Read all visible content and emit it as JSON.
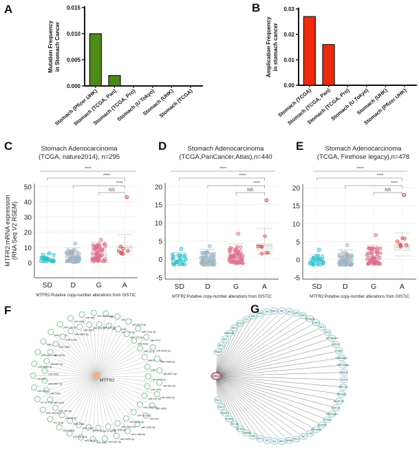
{
  "panel_labels": [
    "A",
    "B",
    "C",
    "D",
    "E",
    "F",
    "G"
  ],
  "chart_data": [
    {
      "id": "A",
      "type": "bar",
      "title": "",
      "ylabel": "Mutation  Frequency\nin Stomach Cancer",
      "xlabel": "",
      "categories": [
        "Stomach (Pfizer UHK)",
        "Stomach (TCGA, Pan)",
        "Stomach (TCGA, Pro)",
        "Stomach (U Tokyo)",
        "Stomach (UHK)",
        "Stomach (TCGA)"
      ],
      "values": [
        0.01,
        0.002,
        0,
        0,
        0,
        0
      ],
      "ylim": [
        0,
        0.015
      ],
      "yticks": [
        "0.000",
        "0.005",
        "0.010",
        "0.015"
      ],
      "color": "#4e8a16"
    },
    {
      "id": "B",
      "type": "bar",
      "title": "",
      "ylabel": "Amplication  Frequency\nin stomach cancer",
      "xlabel": "",
      "categories": [
        "Stomach (TCGA)",
        "Stomach (TCGA, Pan)",
        "Stomach (TCGA, Pro)",
        "Stomach (U Tokyo)",
        "Stomach (UHK)",
        "Stomach (Pfizer UHK)"
      ],
      "values": [
        0.027,
        0.016,
        0,
        0,
        0,
        0
      ],
      "ylim": [
        0,
        0.03
      ],
      "yticks": [
        "0.00",
        "0.01",
        "0.02",
        "0.03"
      ],
      "color": "#f02a0c"
    },
    {
      "id": "C",
      "type": "scatter",
      "title": "Stomach Adenocarcinoma\n(TCGA, nature2014), n=295",
      "ylabel": "MTFR2:mRNA expression\n(RNA Seq V2 RSEM)",
      "xlabel": "MTFR2:Putative copy-number alterations from GISTIC",
      "categories": [
        "SD",
        "D",
        "G",
        "A"
      ],
      "ylim": [
        -10,
        52
      ],
      "yticks": [
        "0",
        "10",
        "20",
        "30",
        "40",
        "50"
      ],
      "groups": [
        {
          "name": "SD",
          "median": 2.5,
          "q1": 1,
          "q3": 4,
          "whisker_low": 0.5,
          "whisker_high": 6,
          "max_point": 6,
          "color": "#27c4cf"
        },
        {
          "name": "D",
          "median": 3.5,
          "q1": 2,
          "q3": 6,
          "whisker_low": 0.3,
          "whisker_high": 9.5,
          "max_point": 12.5,
          "color": "#9fb4c0"
        },
        {
          "name": "G",
          "median": 5,
          "q1": 3,
          "q3": 9,
          "whisker_low": 0.8,
          "whisker_high": 13.5,
          "max_point": 15,
          "color": "#e06e8c"
        },
        {
          "name": "A",
          "median": 10,
          "q1": 7,
          "q3": 11,
          "whisker_low": 5.5,
          "whisker_high": 18.5,
          "max_point": 43,
          "color": "#d9434a"
        }
      ],
      "significance": [
        {
          "pair": [
            "SD",
            "A"
          ],
          "label": "****",
          "spanAll": true
        },
        {
          "pair": [
            "SD",
            "A"
          ],
          "label": "****"
        },
        {
          "pair": [
            "D",
            "A"
          ],
          "label": "****"
        },
        {
          "pair": [
            "G",
            "A"
          ],
          "label": "NS"
        }
      ]
    },
    {
      "id": "D",
      "type": "scatter",
      "title": "Stomach Adenocarcinoma\n(TCGA,PanCancer,Atlas),n=440",
      "ylabel": "",
      "xlabel": "MTFR2:Putative copy-number alterations from GISTIC",
      "categories": [
        "SD",
        "D",
        "G",
        "A"
      ],
      "ylim": [
        -5.5,
        21
      ],
      "yticks": [
        "-5",
        "0",
        "5",
        "10",
        "15",
        "20"
      ],
      "groups": [
        {
          "name": "SD",
          "median": -0.3,
          "q1": -0.8,
          "q3": 0.5,
          "whisker_low": -1.6,
          "whisker_high": 1.8,
          "max_point": 2.8,
          "color": "#27c4cf"
        },
        {
          "name": "D",
          "median": -0.3,
          "q1": -0.9,
          "q3": 0.8,
          "whisker_low": -1.6,
          "whisker_high": 2.7,
          "max_point": 3.6,
          "color": "#9fb4c0"
        },
        {
          "name": "G",
          "median": 0.8,
          "q1": 0.2,
          "q3": 1.8,
          "whisker_low": -1.3,
          "whisker_high": 4.2,
          "max_point": 7,
          "color": "#e06e8c"
        },
        {
          "name": "A",
          "median": 3.8,
          "q1": 2.5,
          "q3": 4.3,
          "whisker_low": 1.4,
          "whisker_high": 8.5,
          "max_point": 16.2,
          "color": "#d9434a"
        }
      ],
      "significance": [
        {
          "pair": [
            "SD",
            "A"
          ],
          "label": "****",
          "spanAll": true
        },
        {
          "pair": [
            "SD",
            "A"
          ],
          "label": "****"
        },
        {
          "pair": [
            "D",
            "A"
          ],
          "label": "****"
        },
        {
          "pair": [
            "G",
            "A"
          ],
          "label": "NS"
        }
      ]
    },
    {
      "id": "E",
      "type": "scatter",
      "title": "Stomach Adenocarcinoma\n(TCGA, Firehose legacy),n=478",
      "ylabel": "",
      "xlabel": "MTFR2:Putative copy-number alterations from GISTIC",
      "categories": [
        "SD",
        "D",
        "G",
        "A"
      ],
      "ylim": [
        -5.5,
        21
      ],
      "yticks": [
        "-5",
        "0",
        "5",
        "10",
        "15",
        "20"
      ],
      "groups": [
        {
          "name": "SD",
          "median": -0.3,
          "q1": -0.8,
          "q3": 0.5,
          "whisker_low": -1.6,
          "whisker_high": 1.3,
          "max_point": 2.7,
          "color": "#27c4cf"
        },
        {
          "name": "D",
          "median": -0.2,
          "q1": -0.8,
          "q3": 0.8,
          "whisker_low": -1.6,
          "whisker_high": 2.7,
          "max_point": 4,
          "color": "#9fb4c0"
        },
        {
          "name": "G",
          "median": 0.8,
          "q1": 0.2,
          "q3": 1.8,
          "whisker_low": -1.3,
          "whisker_high": 4,
          "max_point": 6.8,
          "color": "#e06e8c"
        },
        {
          "name": "A",
          "median": 3.5,
          "q1": 2.5,
          "q3": 4.2,
          "whisker_low": 1.0,
          "whisker_high": 7.4,
          "max_point": 18,
          "color": "#d9434a"
        }
      ],
      "significance": [
        {
          "pair": [
            "SD",
            "A"
          ],
          "label": "****",
          "spanAll": true
        },
        {
          "pair": [
            "SD",
            "A"
          ],
          "label": "****"
        },
        {
          "pair": [
            "D",
            "A"
          ],
          "label": "****"
        },
        {
          "pair": [
            "G",
            "A"
          ],
          "label": "NS"
        }
      ]
    }
  ],
  "network_F": {
    "center": "MTFR2",
    "center_color": "#f4b48a",
    "node_color": "#7fbf95",
    "edge_color": "#c8c8c8",
    "nodes": [
      "miR-4306",
      "miR-4731-5p",
      "miR-4668",
      "miR-186-5p",
      "miR-2814-3p",
      "miR-223-3p",
      "miR-374a-5p",
      "miR-4469",
      "miR-4773",
      "miR-30-3p",
      "miR-5093-5p",
      "miR-6013-5p",
      "miR-7855-5p",
      "miR-3662",
      "miR-6527-5p",
      "miR-3529-5p",
      "miR-891-5p",
      "miR-4281",
      "miR-4466-3p",
      "miR-579-3p",
      "miR-3689",
      "miR-6767-5p",
      "miR-628",
      "miR-3129-5p",
      "miR-3250-5p",
      "miR-2115-3p",
      "miR-1468-5p",
      "miR-7856-5p",
      "miR-3925-5p",
      "miR-3185-3p",
      "miR-661-5p",
      "miR-6796-5p",
      "miR-4283",
      "miR-6-3p",
      "miR-2813-3p",
      "miR-1283",
      "miR-6806-3p",
      "miR-4286",
      "miR-1283b",
      "miR-4438",
      "let-7g-5p",
      "miR-187-5p",
      "miR-455-3p-1",
      "miR-3189",
      "let-7a-2-3p",
      "miR-335c",
      "miR-335a",
      "miR-5587-5p",
      "miR-660",
      "miR-4653",
      "miR-6580-3p",
      "miR-897-5p",
      "miR-196-1-5p",
      "miR-6078",
      "miR-28a-5p",
      "miR-335e",
      "miR-88a-5p",
      "miR-125a",
      "miR-100-3p",
      "miR-6889-3p",
      "miR-6089",
      "miR-4667",
      "miR-582",
      "miR-128-3p",
      "miR-3920a-5p",
      "miR-331-5p"
    ]
  },
  "network_G": {
    "center": "MTFR2",
    "center_color": "#f0c8d8",
    "node_color": "#8fd0cf",
    "edge_color": "#666666",
    "nodes": [
      "POU2",
      "Elk-1",
      "E2F",
      "CEBPBGb",
      "Ets-1",
      "ETS-2",
      "YY1",
      "Nrf2",
      "PAX5",
      "GR",
      "Max-1",
      "AR",
      "p53",
      "E2F1",
      "E2F4",
      "GR-alpha",
      "C-Ets-2",
      "SP-1",
      "SP-3",
      "AP-2alphaA",
      "GATA-1",
      "c-Myb",
      "C/EBPalpha",
      "HNF-3alpha",
      "GATA-2",
      "TCF-4",
      "HNF-1A",
      "TAR-beta",
      "COUP-TF1",
      "HNF-1C",
      "PPAR-alpha",
      "FOXO4",
      "HOXD10",
      "RXR-alpha",
      "c-Jun",
      "Sp1",
      "Pax-6",
      "RORa",
      "AP-4",
      "Ik-1",
      "GR",
      "ELF-1",
      "PGR",
      "CEBPB",
      "NF-AT1",
      "TCF-4B",
      "POU2F1",
      "POU3F2",
      "Oct-1",
      "Fra-1"
    ]
  }
}
